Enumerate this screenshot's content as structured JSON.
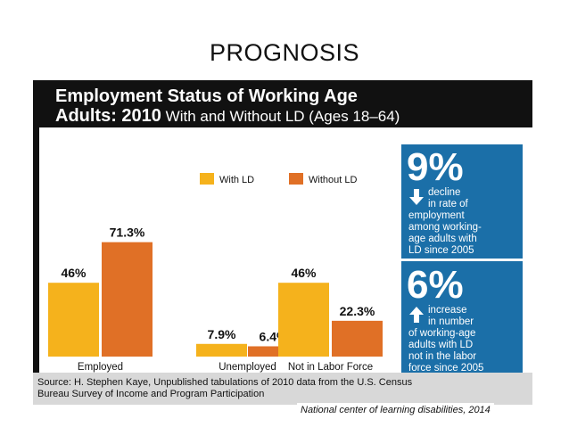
{
  "slide": {
    "title": "PROGNOSIS",
    "credit": "National center of learning disabilities, 2014"
  },
  "header": {
    "line1": "Employment Status of Working Age",
    "line2_bold": "Adults: 2010",
    "line2_rest": " With and Without LD (Ages 18–64)"
  },
  "panel": {
    "stat1": {
      "value": "9%",
      "arrow": "down-arrow-icon",
      "lines": [
        "decline",
        "in rate of",
        "employment",
        "among working-",
        "age adults with",
        "LD since 2005"
      ]
    },
    "stat2": {
      "value": "6%",
      "arrow": "up-arrow-icon",
      "lines": [
        "increase",
        "in number",
        "of working-age",
        "adults with LD",
        "not in the labor",
        "force since 2005"
      ]
    }
  },
  "source": {
    "line1": "Source: H. Stephen Kaye, Unpublished tabulations of 2010 data from the U.S. Census",
    "line2": "Bureau Survey of Income and Program Participation"
  },
  "chart_data": {
    "type": "bar",
    "categories": [
      "Employed",
      "Unemployed",
      "Not in Labor Force"
    ],
    "series": [
      {
        "name": "With LD",
        "values": [
          46,
          7.9,
          46
        ],
        "labels": [
          "46%",
          "7.9%",
          "46%"
        ],
        "color": "#f5b21c"
      },
      {
        "name": "Without LD",
        "values": [
          71.3,
          6.4,
          22.3
        ],
        "labels": [
          "71.3%",
          "6.4%",
          "22.3%"
        ],
        "color": "#e07026"
      }
    ],
    "ylim": [
      0,
      100
    ],
    "grid": false,
    "legend": "top-center"
  }
}
